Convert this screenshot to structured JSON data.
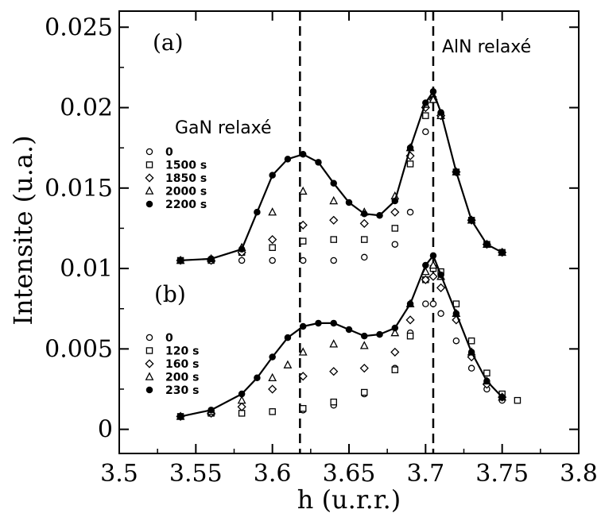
{
  "chart_data": {
    "type": "scatter",
    "title": "",
    "xlabel": "h (u.r.r.)",
    "ylabel": "Intensite (u.a.)",
    "xlim": [
      3.5,
      3.8
    ],
    "ylim": [
      -0.0015,
      0.026
    ],
    "xticks": [
      "3.5",
      "3.55",
      "3.6",
      "3.65",
      "3.7",
      "3.75",
      "3.8"
    ],
    "yticks": [
      "0",
      "0.005",
      "0.01",
      "0.015",
      "0.02",
      "0.025"
    ],
    "grid": false,
    "reference_lines": [
      {
        "x": 3.618,
        "label": "GaN relaxé"
      },
      {
        "x": 3.705,
        "label": "AlN relaxé"
      }
    ],
    "panels": [
      {
        "label": "(a)",
        "legend_placement": "left",
        "series": [
          {
            "name": "0",
            "marker": "open-circle",
            "x": [
              3.54,
              3.56,
              3.58,
              3.6,
              3.62,
              3.64,
              3.66,
              3.68,
              3.69,
              3.7,
              3.705,
              3.71,
              3.72,
              3.73,
              3.74,
              3.75
            ],
            "y": [
              0.0105,
              0.0105,
              0.0105,
              0.0105,
              0.0105,
              0.0105,
              0.0107,
              0.0115,
              0.0135,
              0.0185,
              0.0205,
              0.0195,
              0.016,
              0.013,
              0.0115,
              0.011
            ]
          },
          {
            "name": "1500 s",
            "marker": "open-square",
            "x": [
              3.54,
              3.56,
              3.58,
              3.6,
              3.62,
              3.64,
              3.66,
              3.68,
              3.69,
              3.7,
              3.705,
              3.71,
              3.72,
              3.73,
              3.74,
              3.75
            ],
            "y": [
              0.0105,
              0.0105,
              0.011,
              0.0113,
              0.0117,
              0.0118,
              0.0118,
              0.0125,
              0.0165,
              0.0195,
              0.0205,
              0.0195,
              0.016,
              0.013,
              0.0115,
              0.011
            ]
          },
          {
            "name": "1850 s",
            "marker": "open-diamond",
            "x": [
              3.54,
              3.56,
              3.58,
              3.6,
              3.62,
              3.64,
              3.66,
              3.68,
              3.69,
              3.7,
              3.705,
              3.71,
              3.72,
              3.73,
              3.74,
              3.75
            ],
            "y": [
              0.0105,
              0.0105,
              0.011,
              0.0118,
              0.0127,
              0.013,
              0.0128,
              0.0135,
              0.017,
              0.02,
              0.0205,
              0.0195,
              0.016,
              0.013,
              0.0115,
              0.011
            ]
          },
          {
            "name": "2000 s",
            "marker": "open-triangle",
            "x": [
              3.54,
              3.56,
              3.58,
              3.6,
              3.62,
              3.64,
              3.66,
              3.68,
              3.69,
              3.7,
              3.705,
              3.71,
              3.72,
              3.73,
              3.74,
              3.75
            ],
            "y": [
              0.0105,
              0.0106,
              0.0113,
              0.0135,
              0.0148,
              0.0142,
              0.0135,
              0.0145,
              0.0175,
              0.0202,
              0.0205,
              0.0195,
              0.016,
              0.013,
              0.0115,
              0.011
            ]
          },
          {
            "name": "2200 s",
            "marker": "filled-circle",
            "x": [
              3.54,
              3.56,
              3.58,
              3.59,
              3.6,
              3.61,
              3.62,
              3.63,
              3.64,
              3.65,
              3.66,
              3.67,
              3.68,
              3.69,
              3.7,
              3.705,
              3.71,
              3.72,
              3.73,
              3.74,
              3.75
            ],
            "y": [
              0.0105,
              0.0106,
              0.0112,
              0.0135,
              0.0158,
              0.0168,
              0.0171,
              0.0166,
              0.0153,
              0.0141,
              0.0134,
              0.0133,
              0.0142,
              0.0175,
              0.0203,
              0.021,
              0.0197,
              0.016,
              0.013,
              0.0115,
              0.011
            ]
          }
        ]
      },
      {
        "label": "(b)",
        "legend_placement": "left",
        "series": [
          {
            "name": "0",
            "marker": "open-circle",
            "x": [
              3.54,
              3.56,
              3.58,
              3.6,
              3.62,
              3.64,
              3.66,
              3.68,
              3.69,
              3.7,
              3.705,
              3.71,
              3.72,
              3.73,
              3.74,
              3.75
            ],
            "y": [
              0.0008,
              0.001,
              0.001,
              0.0011,
              0.0012,
              0.0015,
              0.0022,
              0.0038,
              0.006,
              0.0078,
              0.0078,
              0.0072,
              0.0055,
              0.0038,
              0.0025,
              0.0018
            ]
          },
          {
            "name": "120 s",
            "marker": "open-square",
            "x": [
              3.54,
              3.56,
              3.58,
              3.6,
              3.62,
              3.64,
              3.66,
              3.68,
              3.69,
              3.7,
              3.705,
              3.71,
              3.72,
              3.73,
              3.74,
              3.75,
              3.76
            ],
            "y": [
              0.0008,
              0.001,
              0.001,
              0.0011,
              0.0013,
              0.0017,
              0.0023,
              0.0037,
              0.0058,
              0.0093,
              0.01,
              0.0098,
              0.0078,
              0.0055,
              0.0035,
              0.0022,
              0.0018
            ]
          },
          {
            "name": "160 s",
            "marker": "open-diamond",
            "x": [
              3.54,
              3.56,
              3.58,
              3.6,
              3.62,
              3.64,
              3.66,
              3.68,
              3.69,
              3.7,
              3.705,
              3.71,
              3.72,
              3.73,
              3.74,
              3.75
            ],
            "y": [
              0.0008,
              0.001,
              0.0014,
              0.0025,
              0.0033,
              0.0036,
              0.0038,
              0.0048,
              0.0068,
              0.0093,
              0.0095,
              0.0088,
              0.0068,
              0.0045,
              0.0028,
              0.002
            ]
          },
          {
            "name": "200 s",
            "marker": "open-triangle",
            "x": [
              3.54,
              3.56,
              3.58,
              3.6,
              3.61,
              3.62,
              3.64,
              3.66,
              3.68,
              3.69,
              3.7,
              3.705,
              3.71,
              3.72,
              3.73,
              3.74,
              3.75
            ],
            "y": [
              0.0008,
              0.0011,
              0.0018,
              0.0032,
              0.004,
              0.0048,
              0.0053,
              0.0052,
              0.006,
              0.0078,
              0.0098,
              0.0102,
              0.0095,
              0.0072,
              0.0048,
              0.003,
              0.002
            ]
          },
          {
            "name": "230 s",
            "marker": "filled-circle",
            "x": [
              3.54,
              3.56,
              3.58,
              3.59,
              3.6,
              3.61,
              3.62,
              3.63,
              3.64,
              3.65,
              3.66,
              3.67,
              3.68,
              3.69,
              3.7,
              3.705,
              3.71,
              3.72,
              3.73,
              3.74,
              3.75
            ],
            "y": [
              0.0008,
              0.0012,
              0.0022,
              0.0032,
              0.0045,
              0.0057,
              0.0064,
              0.0066,
              0.0066,
              0.0062,
              0.0058,
              0.0059,
              0.0063,
              0.0078,
              0.0102,
              0.0108,
              0.0096,
              0.0072,
              0.0048,
              0.003,
              0.002
            ]
          }
        ]
      }
    ]
  }
}
